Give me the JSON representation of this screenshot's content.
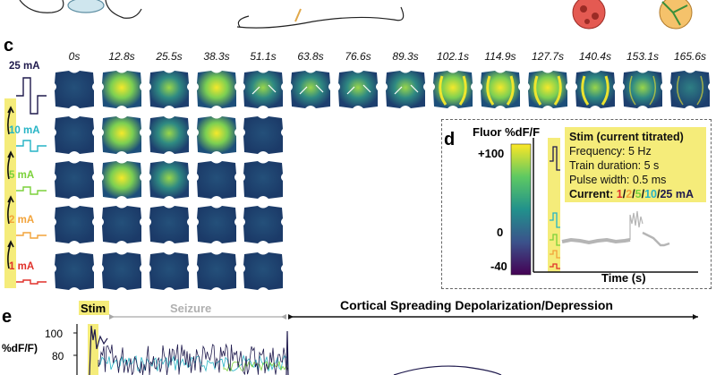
{
  "panel_c": {
    "label": "c",
    "times": [
      "0s",
      "12.8s",
      "25.5s",
      "38.3s",
      "51.1s",
      "63.8s",
      "76.6s",
      "89.3s",
      "102.1s",
      "114.9s",
      "127.7s",
      "140.4s",
      "153.1s",
      "165.6s"
    ],
    "rows": [
      {
        "current": "25 mA",
        "color": "#1f1a4d",
        "cols": 14
      },
      {
        "current": "10 mA",
        "color": "#26b4c5",
        "cols": 5
      },
      {
        "current": "5 mA",
        "color": "#7bd13a",
        "cols": 5
      },
      {
        "current": "2 mA",
        "color": "#f2a33a",
        "cols": 5
      },
      {
        "current": "1 mA",
        "color": "#e0312a",
        "cols": 5
      }
    ],
    "arrow_rows": [
      4,
      5,
      6,
      7
    ]
  },
  "panel_d": {
    "label": "d",
    "colorbar_title": "Fluor %dF/F",
    "colorbar_ticks": [
      "+100",
      "0",
      "-40"
    ],
    "x_axis_label": "Time (s)",
    "stim": {
      "title": "Stim (current titrated)",
      "frequency": "Frequency: 5 Hz",
      "train": "Train duration: 5 s",
      "pulse": "Pulse width: 0.5 ms",
      "current_prefix": "Current: ",
      "current_values": [
        {
          "v": "1",
          "color": "#e0312a"
        },
        {
          "v": "2",
          "color": "#f2a33a"
        },
        {
          "v": "5",
          "color": "#7bd13a"
        },
        {
          "v": "10",
          "color": "#26b4c5"
        },
        {
          "v": "25 mA",
          "color": "#1f1a4d"
        }
      ],
      "separator": "/"
    }
  },
  "panel_e": {
    "label": "e",
    "stim_label": "Stim",
    "seizure_label": "Seizure",
    "csd_label": "Cortical Spreading Depolarization/Depression",
    "y_axis_label": "%dF/F)",
    "y_ticks": [
      "100",
      "80"
    ]
  },
  "colors": {
    "stim_highlight": "#f5ec7a",
    "tissue_dark": "#1d3f6e",
    "tissue_yellow": "#f5e92b",
    "seizure_gray": "#a8a8a8"
  }
}
